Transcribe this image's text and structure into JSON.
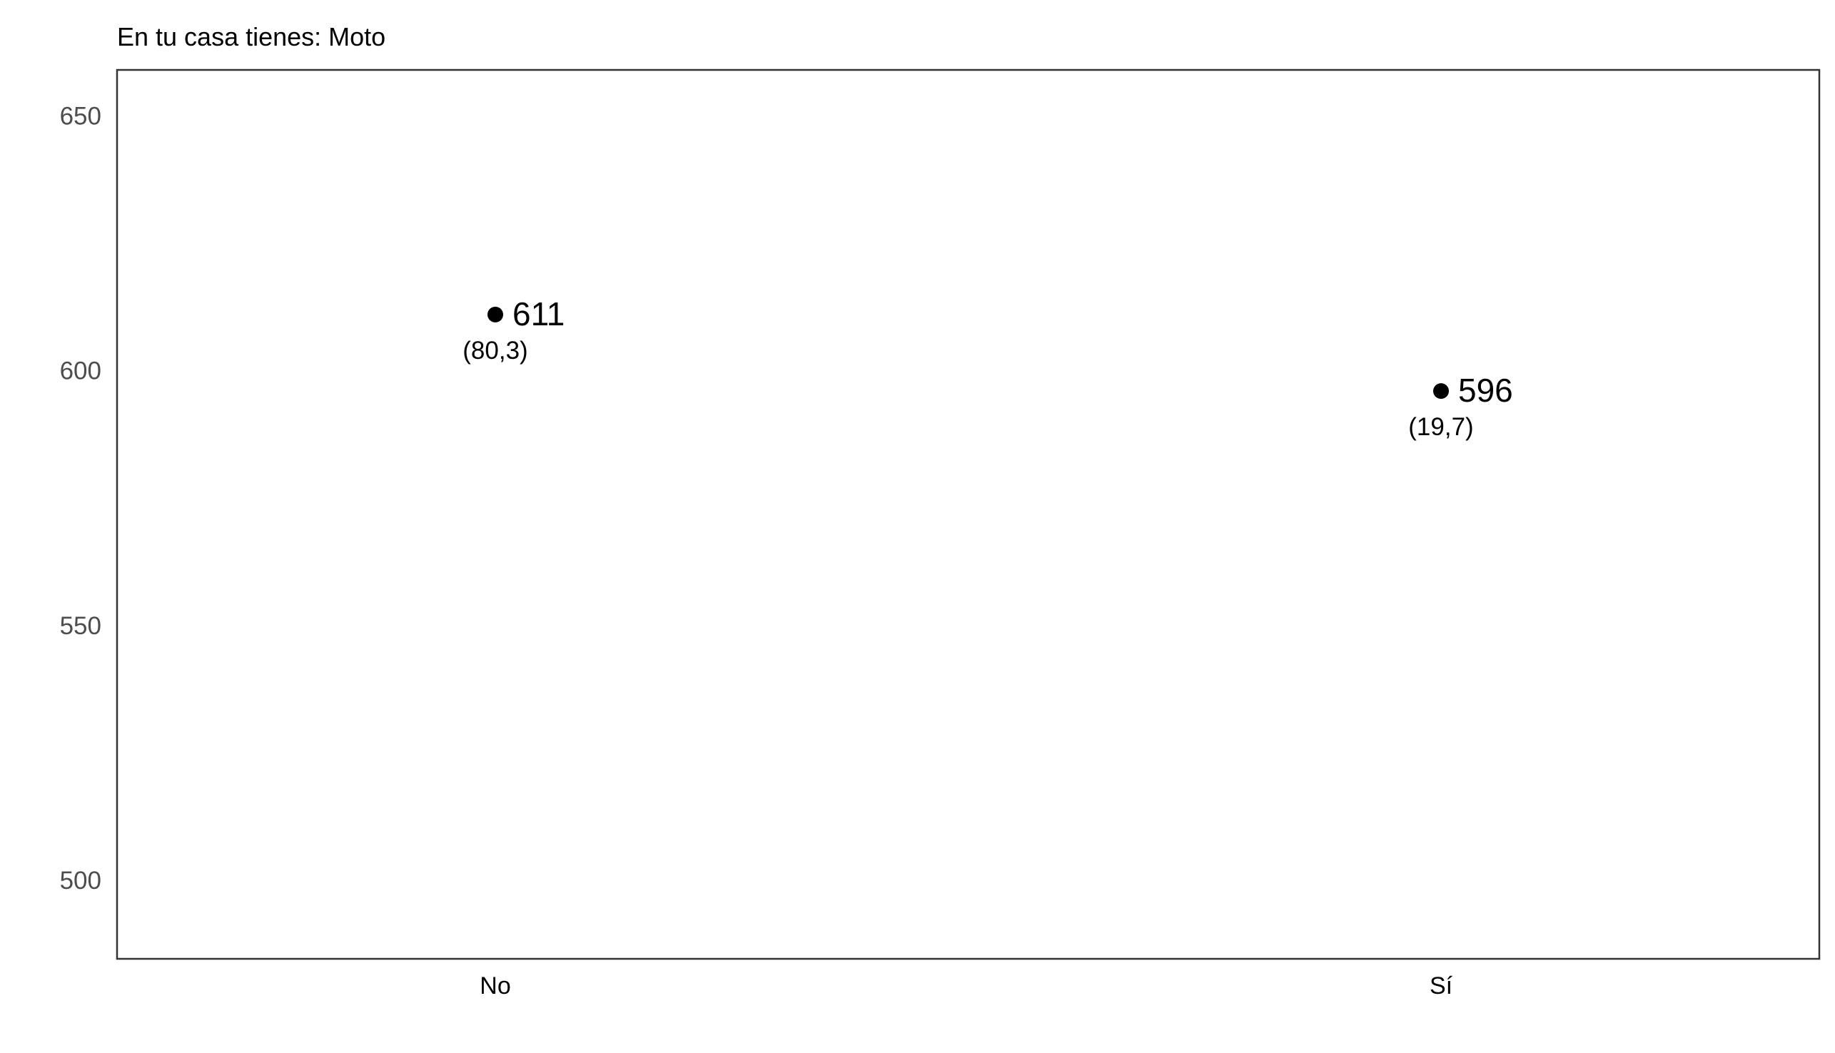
{
  "chart_data": {
    "type": "scatter",
    "title": "En tu casa tienes: Moto",
    "xlabel": "",
    "ylabel": "",
    "categories": [
      "No",
      "Sí"
    ],
    "values": [
      611,
      596
    ],
    "value_labels": [
      "611",
      "596"
    ],
    "percent_labels": [
      "(80,3)",
      "(19,7)"
    ],
    "ylim": [
      484.6,
      659
    ],
    "yticks": [
      500,
      550,
      600,
      650
    ],
    "ytick_labels": [
      "500",
      "550",
      "600",
      "650"
    ],
    "grid": false,
    "legend": "none",
    "point_color": "#000000"
  }
}
